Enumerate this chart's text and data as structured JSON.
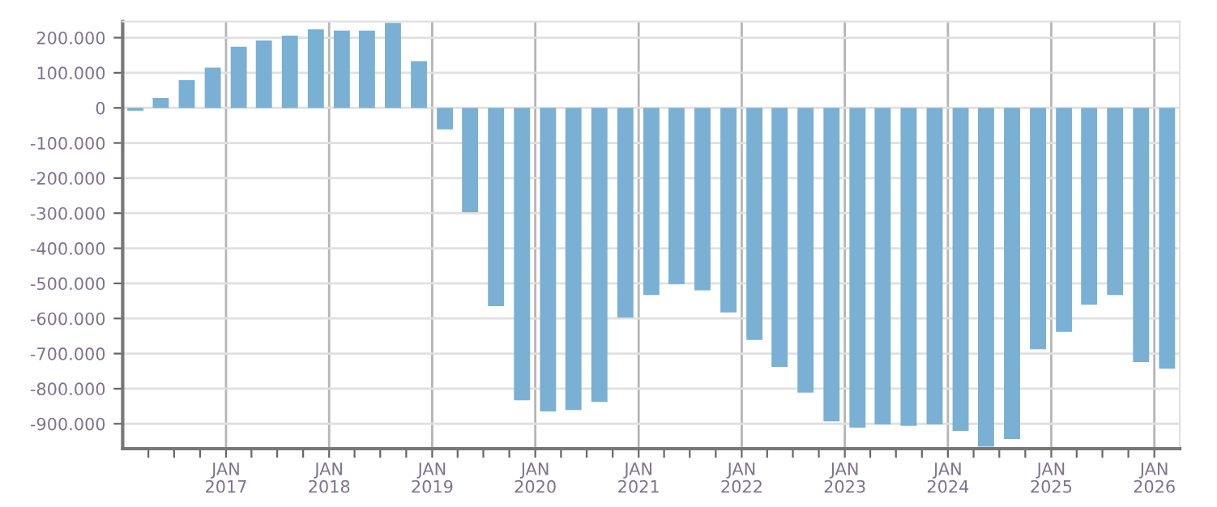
{
  "chart_data": {
    "type": "bar",
    "x": [
      "2016-02-15",
      "2016-05-15",
      "2016-08-15",
      "2016-11-15",
      "2017-02-15",
      "2017-05-15",
      "2017-08-15",
      "2017-11-15",
      "2018-02-15",
      "2018-05-15",
      "2018-08-15",
      "2018-11-15",
      "2019-02-15",
      "2019-05-15",
      "2019-08-15",
      "2019-11-15",
      "2020-02-15",
      "2020-05-15",
      "2020-08-15",
      "2020-11-15",
      "2021-02-15",
      "2021-05-15",
      "2021-08-15",
      "2021-11-15",
      "2022-02-15",
      "2022-05-15",
      "2022-08-15",
      "2022-11-15",
      "2023-02-15",
      "2023-05-15",
      "2023-08-15",
      "2023-11-15",
      "2024-02-15",
      "2024-05-15",
      "2024-08-15",
      "2024-11-15",
      "2025-02-15",
      "2025-05-15",
      "2025-08-15",
      "2025-11-15",
      "2026-02-15"
    ],
    "values": [
      -8000,
      28000,
      79000,
      115000,
      174000,
      192000,
      206000,
      224000,
      220000,
      220000,
      242000,
      133000,
      -61000,
      -297000,
      -565000,
      -833000,
      -865000,
      -861000,
      -838000,
      -597000,
      -533000,
      -502000,
      -520000,
      -583000,
      -661000,
      -738000,
      -811000,
      -893000,
      -911000,
      -902000,
      -906000,
      -902000,
      -920000,
      -965000,
      -943000,
      -688000,
      -638000,
      -561000,
      -533000,
      -724000,
      -743000
    ],
    "color": "#79b0d3",
    "ylim": [
      -971000,
      246000
    ],
    "yticks": [
      {
        "value": -900000,
        "label": "-900.000"
      },
      {
        "value": -800000,
        "label": "-800.000"
      },
      {
        "value": -700000,
        "label": "-700.000"
      },
      {
        "value": -600000,
        "label": "-600.000"
      },
      {
        "value": -500000,
        "label": "-500.000"
      },
      {
        "value": -400000,
        "label": "-400.000"
      },
      {
        "value": -300000,
        "label": "-300.000"
      },
      {
        "value": -200000,
        "label": "-200.000"
      },
      {
        "value": -100000,
        "label": "-100.000"
      },
      0,
      {
        "value": 100000,
        "label": "100.000"
      },
      {
        "value": 200000,
        "label": "200.000"
      }
    ],
    "xlim": [
      "2016-01-01",
      "2026-04-01"
    ],
    "xticks": [
      {
        "value": "2016-04-01",
        "label": null
      },
      {
        "value": "2016-07-01",
        "label": null
      },
      {
        "value": "2016-10-01",
        "label": null
      },
      {
        "value": "2017-01-01",
        "label": "JAN\n2017"
      },
      {
        "value": "2017-04-01",
        "label": null
      },
      {
        "value": "2017-07-01",
        "label": null
      },
      {
        "value": "2017-10-01",
        "label": null
      },
      {
        "value": "2018-01-01",
        "label": "JAN\n2018"
      },
      {
        "value": "2018-04-01",
        "label": null
      },
      {
        "value": "2018-07-01",
        "label": null
      },
      {
        "value": "2018-10-01",
        "label": null
      },
      {
        "value": "2019-01-01",
        "label": "JAN\n2019"
      },
      {
        "value": "2019-04-01",
        "label": null
      },
      {
        "value": "2019-07-01",
        "label": null
      },
      {
        "value": "2019-10-01",
        "label": null
      },
      {
        "value": "2020-01-01",
        "label": "JAN\n2020"
      },
      {
        "value": "2020-04-01",
        "label": null
      },
      {
        "value": "2020-07-01",
        "label": null
      },
      {
        "value": "2020-10-01",
        "label": null
      },
      {
        "value": "2021-01-01",
        "label": "JAN\n2021"
      },
      {
        "value": "2021-04-01",
        "label": null
      },
      {
        "value": "2021-07-01",
        "label": null
      },
      {
        "value": "2021-10-01",
        "label": null
      },
      {
        "value": "2022-01-01",
        "label": "JAN\n2022"
      },
      {
        "value": "2022-04-01",
        "label": null
      },
      {
        "value": "2022-07-01",
        "label": null
      },
      {
        "value": "2022-10-01",
        "label": null
      },
      {
        "value": "2023-01-01",
        "label": "JAN\n2023"
      },
      {
        "value": "2023-04-01",
        "label": null
      },
      {
        "value": "2023-07-01",
        "label": null
      },
      {
        "value": "2023-10-01",
        "label": null
      },
      {
        "value": "2024-01-01",
        "label": "JAN\n2024"
      },
      {
        "value": "2024-04-01",
        "label": null
      },
      {
        "value": "2024-07-01",
        "label": null
      },
      {
        "value": "2024-10-01",
        "label": null
      },
      {
        "value": "2025-01-01",
        "label": "JAN\n2025"
      },
      {
        "value": "2025-04-01",
        "label": null
      },
      {
        "value": "2025-07-01",
        "label": null
      },
      {
        "value": "2025-10-01",
        "label": null
      },
      {
        "value": "2026-01-01",
        "label": "JAN\n2026"
      }
    ],
    "grid": true
  }
}
